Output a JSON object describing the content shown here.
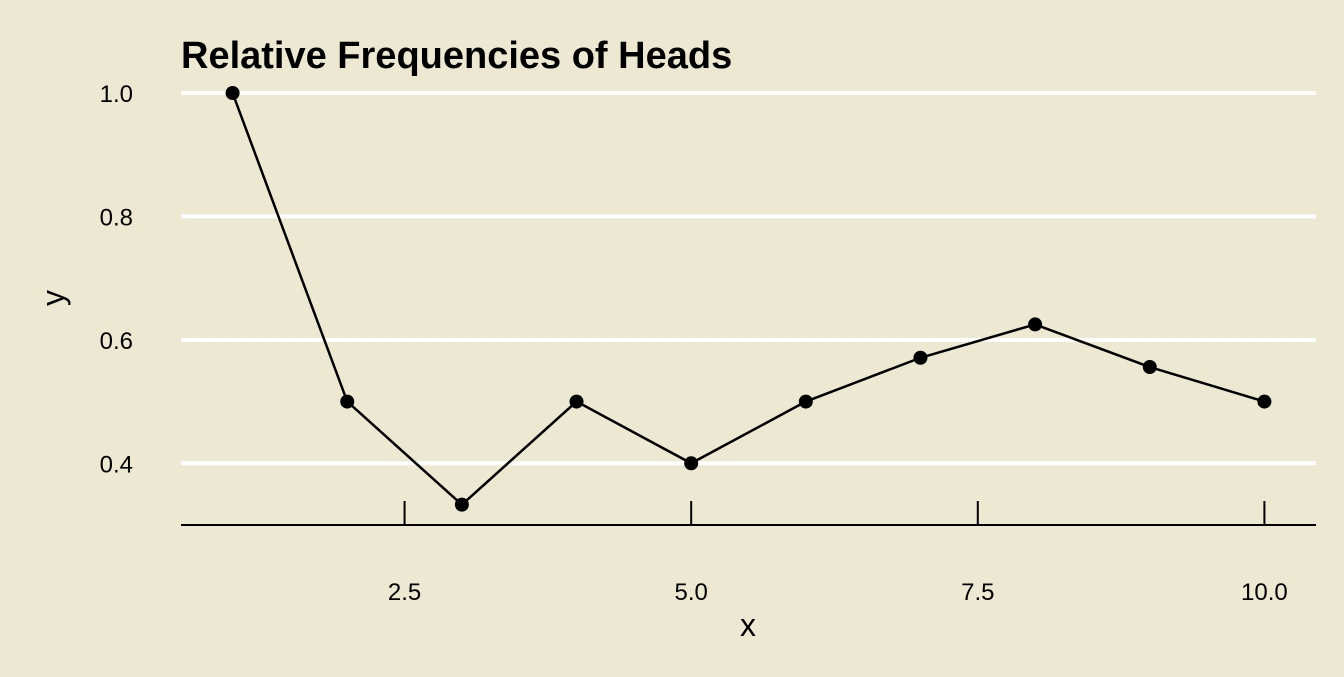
{
  "chart_data": {
    "type": "line",
    "title": "Relative Frequencies of Heads",
    "xlabel": "x",
    "ylabel": "y",
    "x": [
      1,
      2,
      3,
      4,
      5,
      6,
      7,
      8,
      9,
      10
    ],
    "series": [
      {
        "values": [
          1.0,
          0.5,
          0.333,
          0.5,
          0.4,
          0.5,
          0.571,
          0.625,
          0.556,
          0.5
        ]
      }
    ],
    "xticks": [
      2.5,
      5.0,
      7.5,
      10.0
    ],
    "xtick_labels": [
      "2.5",
      "5.0",
      "7.5",
      "10.0"
    ],
    "yticks": [
      0.4,
      0.6,
      0.8,
      1.0
    ],
    "ytick_labels": [
      "0.4",
      "0.6",
      "0.8",
      "1.0"
    ],
    "xlim": [
      0.55,
      10.45
    ],
    "ylim": [
      0.3,
      1.0
    ],
    "grid": "horizontal",
    "legend": "none",
    "colors": {
      "background": "#ece8d1",
      "grid": "#ffffff",
      "series": "#000000",
      "axis": "#000000",
      "text": "#000000"
    }
  }
}
